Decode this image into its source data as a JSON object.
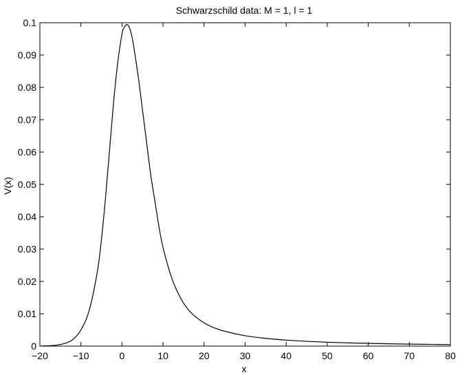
{
  "chart_data": {
    "type": "line",
    "title": "Schwarzschild data: M = 1, l = 1",
    "xlabel": "x",
    "ylabel": "V(x)",
    "xlim": [
      -20,
      80
    ],
    "ylim": [
      0,
      0.1
    ],
    "grid": false,
    "x_ticks": [
      -20,
      -10,
      0,
      10,
      20,
      30,
      40,
      50,
      60,
      70,
      80
    ],
    "x_tick_labels": [
      "−20",
      "−10",
      "0",
      "10",
      "20",
      "30",
      "40",
      "50",
      "60",
      "70",
      "80"
    ],
    "y_ticks": [
      0,
      0.01,
      0.02,
      0.03,
      0.04,
      0.05,
      0.06,
      0.07,
      0.08,
      0.09,
      0.1
    ],
    "y_tick_labels": [
      "0",
      "0.01",
      "0.02",
      "0.03",
      "0.04",
      "0.05",
      "0.06",
      "0.07",
      "0.08",
      "0.09",
      "0.1"
    ],
    "series": [
      {
        "color": "#000000",
        "x": [
          -20,
          -18,
          -16,
          -14,
          -12,
          -10,
          -8,
          -6,
          -5,
          -4,
          -3,
          -2,
          -1,
          0,
          0.5,
          1,
          1.3,
          1.5,
          2,
          2.5,
          3,
          4,
          5,
          6,
          7,
          8,
          9,
          10,
          12,
          14,
          16,
          18,
          20,
          22,
          25,
          30,
          35,
          40,
          45,
          50,
          55,
          60,
          65,
          70,
          75,
          80
        ],
        "y": [
          1e-05,
          0.0001,
          0.0003,
          0.0008,
          0.002,
          0.005,
          0.011,
          0.023,
          0.033,
          0.046,
          0.061,
          0.076,
          0.088,
          0.0965,
          0.0985,
          0.0993,
          0.0994,
          0.0992,
          0.0978,
          0.0952,
          0.0915,
          0.083,
          0.073,
          0.063,
          0.053,
          0.045,
          0.037,
          0.0305,
          0.0215,
          0.0155,
          0.0115,
          0.009,
          0.0072,
          0.0059,
          0.0046,
          0.0032,
          0.0024,
          0.00185,
          0.00148,
          0.0012,
          0.001,
          0.00085,
          0.00072,
          0.00062,
          0.00054,
          0.00047
        ]
      }
    ]
  }
}
